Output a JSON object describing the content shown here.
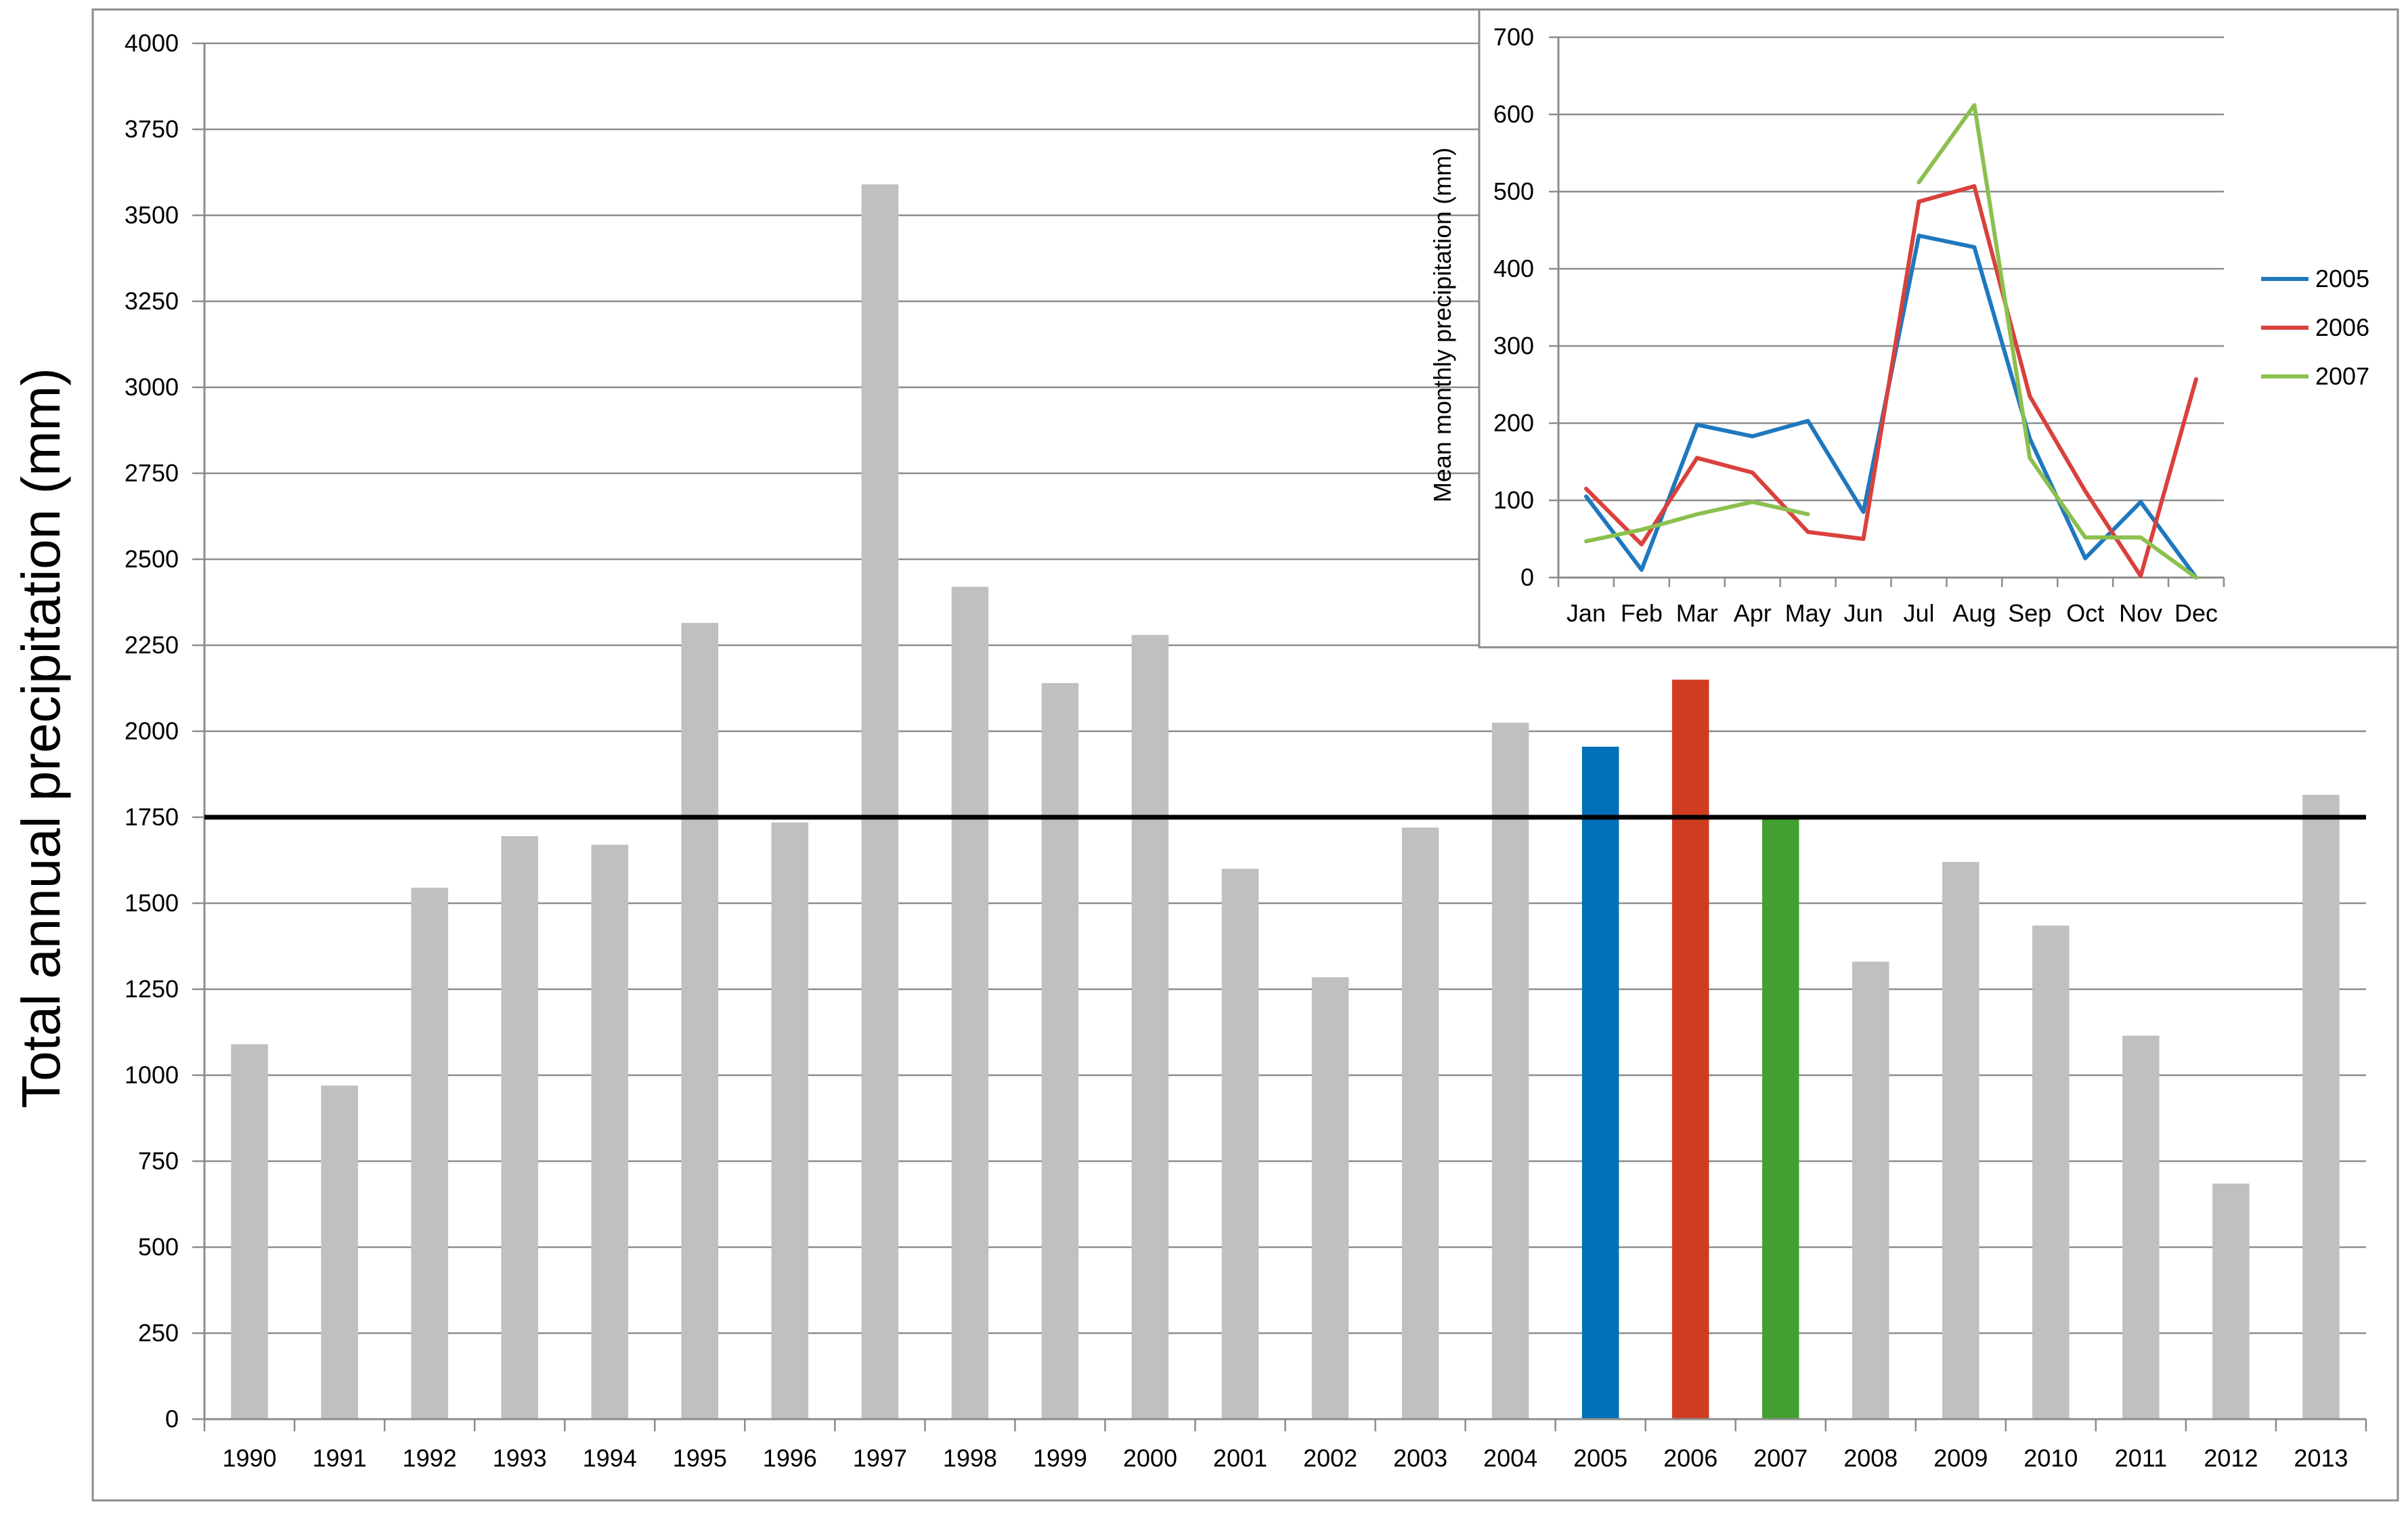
{
  "chart_data": [
    {
      "type": "bar",
      "ylabel": "Total annual precipitation (mm)",
      "xlabel": "",
      "categories": [
        "1990",
        "1991",
        "1992",
        "1993",
        "1994",
        "1995",
        "1996",
        "1997",
        "1998",
        "1999",
        "2000",
        "2001",
        "2002",
        "2003",
        "2004",
        "2005",
        "2006",
        "2007",
        "2008",
        "2009",
        "2010",
        "2011",
        "2012",
        "2013"
      ],
      "values": [
        1090,
        970,
        1545,
        1695,
        1670,
        2315,
        1735,
        3590,
        2420,
        2140,
        2280,
        1600,
        1285,
        1720,
        2025,
        1955,
        2150,
        1750,
        1330,
        1620,
        1435,
        1115,
        685,
        1815
      ],
      "ylim": [
        0,
        4000
      ],
      "yticks": [
        0,
        250,
        500,
        750,
        1000,
        1250,
        1500,
        1750,
        2000,
        2250,
        2500,
        2750,
        3000,
        3250,
        3500,
        3750,
        4000
      ],
      "reference_line": 1750,
      "colors": {
        "default_bar": "#c0c0c0",
        "highlight": {
          "2005": "#0070b8",
          "2006": "#d03c22",
          "2007": "#44a030"
        },
        "reference_line": "#000000",
        "grid": "#8c8c8c"
      },
      "grid": true
    },
    {
      "type": "line",
      "ylabel": "Mean monthly precipitation (mm)",
      "categories": [
        "Jan",
        "Feb",
        "Mar",
        "Apr",
        "May",
        "Jun",
        "Jul",
        "Aug",
        "Sep",
        "Oct",
        "Nov",
        "Dec"
      ],
      "ylim": [
        0,
        700
      ],
      "yticks": [
        0,
        100,
        200,
        300,
        400,
        500,
        600,
        700
      ],
      "grid": true,
      "legend_position": "right",
      "series": [
        {
          "name": "2005",
          "color": "#1f78be",
          "values": [
            105,
            10,
            198,
            183,
            203,
            85,
            443,
            428,
            180,
            25,
            98,
            0
          ]
        },
        {
          "name": "2006",
          "color": "#d9413c",
          "values": [
            115,
            43,
            155,
            136,
            59,
            50,
            487,
            507,
            235,
            112,
            2,
            257
          ]
        },
        {
          "name": "2007",
          "color": "#8cc04e",
          "values": [
            47,
            62,
            82,
            98,
            82,
            null,
            512,
            612,
            155,
            52,
            52,
            0
          ]
        }
      ]
    }
  ]
}
